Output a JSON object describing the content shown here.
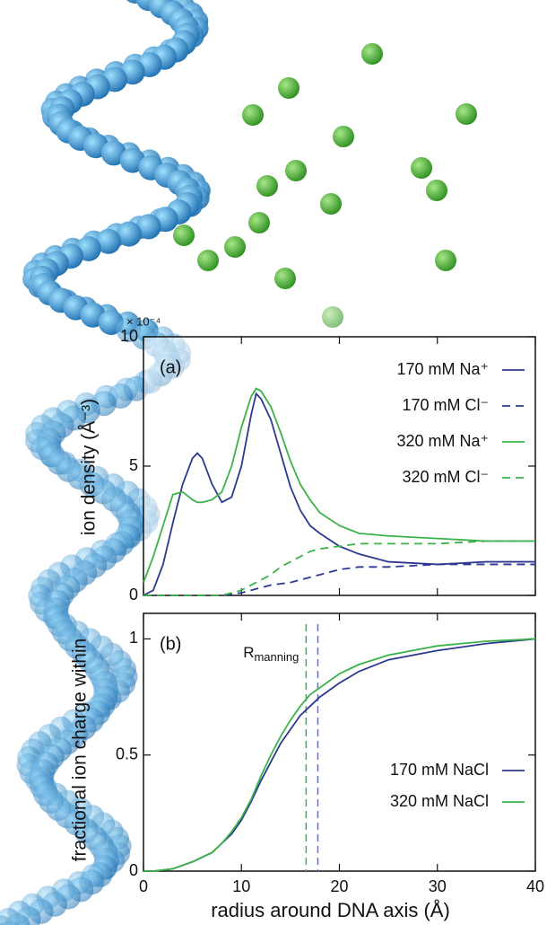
{
  "chart_data": [
    {
      "type": "line",
      "annotation": "(a)",
      "ylabel": "ion density (Å⁻³)",
      "y_multiplier": "× 10⁻⁴",
      "xlim": [
        0,
        40
      ],
      "xticks": [
        0,
        10,
        20,
        30,
        40
      ],
      "ylim": [
        0,
        10
      ],
      "yticks": [
        0,
        5,
        10
      ],
      "x": [
        0,
        1,
        2,
        3,
        4,
        5,
        5.5,
        6,
        7,
        8,
        9,
        10,
        11,
        11.5,
        12,
        13,
        14,
        15,
        16,
        17,
        18,
        20,
        22,
        25,
        30,
        35,
        40
      ],
      "series": [
        {
          "name": "170 mM Na⁺",
          "color": "#2b3990",
          "style": "solid",
          "values": [
            0,
            0.2,
            1.2,
            2.8,
            4.3,
            5.3,
            5.5,
            5.3,
            4.3,
            3.6,
            3.8,
            5.0,
            7.0,
            7.8,
            7.6,
            6.8,
            5.5,
            4.2,
            3.3,
            2.7,
            2.4,
            1.9,
            1.6,
            1.3,
            1.2,
            1.3,
            1.3
          ]
        },
        {
          "name": "170 mM Cl⁻",
          "color": "#2b3990",
          "style": "dashed",
          "values": [
            0,
            0,
            0,
            0,
            0,
            0,
            0,
            0,
            0,
            0,
            0.05,
            0.1,
            0.2,
            0.25,
            0.3,
            0.4,
            0.45,
            0.5,
            0.6,
            0.7,
            0.8,
            1.0,
            1.1,
            1.1,
            1.2,
            1.2,
            1.2
          ]
        },
        {
          "name": "320 mM Na⁺",
          "color": "#3cb34a",
          "style": "solid",
          "values": [
            0.5,
            1.5,
            2.7,
            3.9,
            4.0,
            3.7,
            3.6,
            3.6,
            3.7,
            4.0,
            5.0,
            6.5,
            7.7,
            8.0,
            7.9,
            7.3,
            6.3,
            5.2,
            4.3,
            3.7,
            3.2,
            2.7,
            2.4,
            2.3,
            2.2,
            2.1,
            2.1
          ]
        },
        {
          "name": "320 mM Cl⁻",
          "color": "#3cb34a",
          "style": "dashed",
          "values": [
            0,
            0,
            0,
            0,
            0,
            0,
            0,
            0,
            0,
            0,
            0.1,
            0.2,
            0.4,
            0.5,
            0.6,
            0.8,
            1.1,
            1.3,
            1.5,
            1.7,
            1.8,
            1.9,
            2.0,
            2.0,
            2.0,
            2.1,
            2.1
          ]
        }
      ]
    },
    {
      "type": "line",
      "annotation": "(b)",
      "ylabel": "fractional ion charge within",
      "xlabel": "radius around DNA axis (Å)",
      "xlim": [
        0,
        40
      ],
      "xticks": [
        0,
        10,
        20,
        30,
        40
      ],
      "ylim": [
        0,
        1.11
      ],
      "yticks": [
        0,
        0.5,
        1
      ],
      "x": [
        0,
        1,
        2,
        3,
        5,
        7,
        8,
        9,
        10,
        11,
        12,
        13,
        14,
        15,
        16,
        17,
        18,
        20,
        22,
        25,
        30,
        35,
        40
      ],
      "series": [
        {
          "name": "170 mM NaCl",
          "color": "#2b3990",
          "style": "solid",
          "values": [
            0,
            0,
            0.005,
            0.01,
            0.04,
            0.08,
            0.12,
            0.16,
            0.22,
            0.3,
            0.39,
            0.47,
            0.55,
            0.61,
            0.67,
            0.71,
            0.75,
            0.81,
            0.86,
            0.91,
            0.95,
            0.98,
            1.0
          ]
        },
        {
          "name": "320 mM NaCl",
          "color": "#3cb34a",
          "style": "solid",
          "values": [
            0,
            0,
            0.005,
            0.01,
            0.04,
            0.08,
            0.12,
            0.17,
            0.23,
            0.31,
            0.41,
            0.5,
            0.58,
            0.65,
            0.71,
            0.76,
            0.79,
            0.85,
            0.89,
            0.93,
            0.97,
            0.99,
            1.0
          ]
        }
      ],
      "vlines": [
        {
          "x": 16.6,
          "color": "#3cb34a"
        },
        {
          "x": 17.8,
          "color": "#6670b0"
        }
      ],
      "vline_label": "R",
      "vline_label_sub": "manning"
    }
  ]
}
